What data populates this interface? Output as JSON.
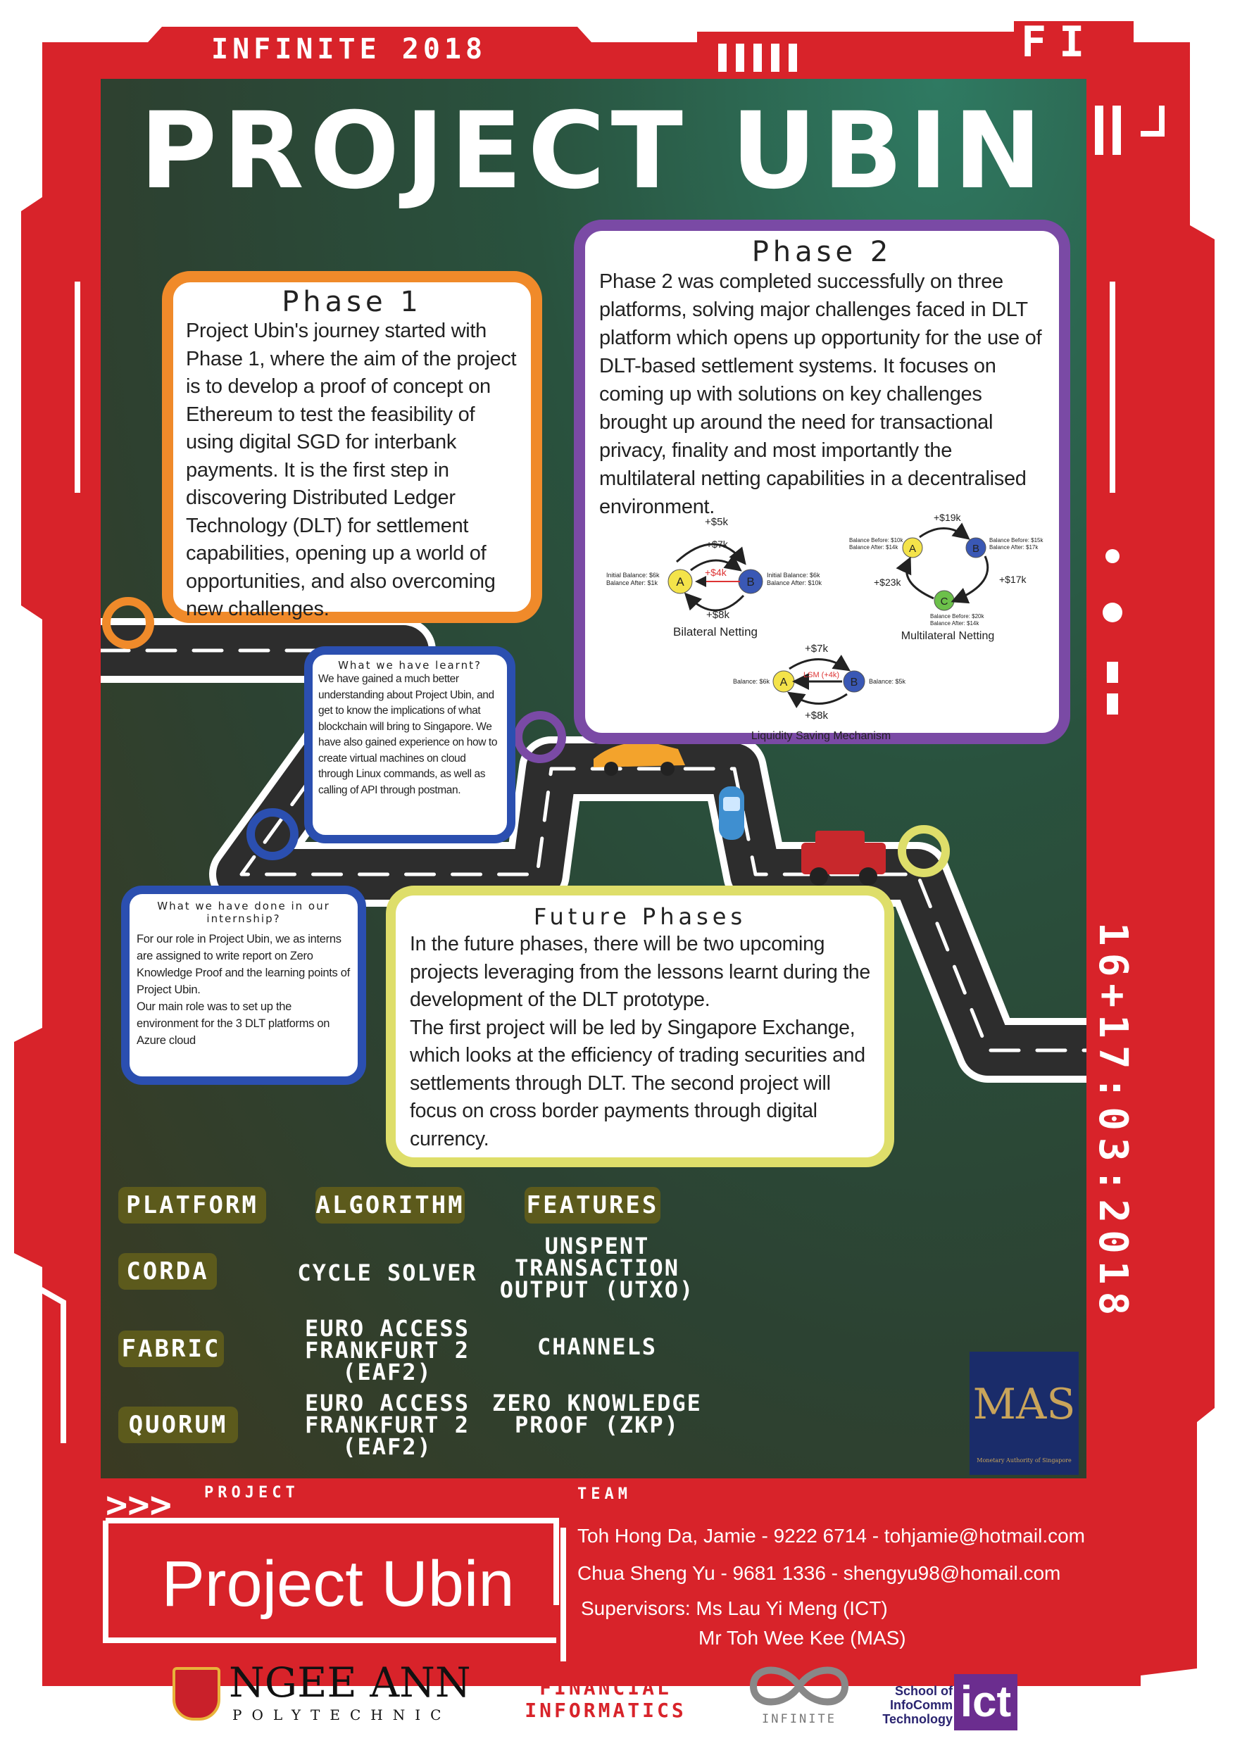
{
  "header": {
    "event": "INFINITE 2018",
    "corner_code": "FI",
    "side_code": "16+17:03:2018"
  },
  "title": "PROJECT UBIN",
  "phase1": {
    "title": "Phase 1",
    "text": "Project Ubin's journey started with Phase 1, where the aim of the project is to develop a proof of concept on Ethereum to test the feasibility of using digital SGD for interbank payments. It is the first step in discovering Distributed Ledger Technology (DLT) for settlement capabilities, opening up a world of opportunities, and also overcoming new challenges."
  },
  "phase2": {
    "title": "Phase 2",
    "text": "Phase 2 was completed successfully on three platforms, solving major challenges faced in DLT platform which opens up opportunity for the use of DLT-based settlement systems. It focuses on coming up with solutions on key challenges brought up around the need for transactional privacy, finality and most importantly the multilateral netting capabilities in a decentralised environment."
  },
  "diagrams": {
    "bilateral": {
      "label": "Bilateral Netting",
      "node_a": "A",
      "node_b": "B",
      "flow_top1": "+$5k",
      "flow_top2": "+$7k",
      "flow_net": "+$4k",
      "flow_bottom": "+$8k",
      "a_note1": "Initial Balance: $6k",
      "a_note2": "Balance After: $1k",
      "b_note1": "Initial Balance: $6k",
      "b_note2": "Balance After: $10k"
    },
    "multilateral": {
      "label": "Multilateral Netting",
      "node_a": "A",
      "node_b": "B",
      "node_c": "C",
      "flow_ab": "+$19k",
      "flow_bc": "+$17k",
      "flow_ca": "+$23k",
      "a_note1": "Balance Before: $10k",
      "a_note2": "Balance After: $14k",
      "b_note1": "Balance Before: $15k",
      "b_note2": "Balance After: $17k",
      "c_note1": "Balance Before: $20k",
      "c_note2": "Balance After: $14k"
    },
    "lsm": {
      "label": "Liquidity Saving Mechanism",
      "node_a": "A",
      "node_b": "B",
      "flow_top": "+$7k",
      "flow_mid": "LSM (+4k)",
      "flow_bottom": "+$8k",
      "a_note": "Balance: $6k",
      "b_note": "Balance: $5k"
    }
  },
  "learnt": {
    "title": "What we have learnt?",
    "text": "We have gained a much better understanding about Project Ubin, and get to know the implications of what blockchain will bring to Singapore. We have also gained experience on how to create virtual machines on cloud through Linux commands, as well as calling of API through postman."
  },
  "done": {
    "title": "What we have done in our internship?",
    "text1": "For our role in Project Ubin, we as interns are assigned to write report on Zero Knowledge Proof and the learning points of Project Ubin.",
    "text2": "Our main role was to set up the environment for the 3 DLT platforms on Azure cloud"
  },
  "future": {
    "title": "Future Phases",
    "text1": "In the future phases, there will be two upcoming projects leveraging from the lessons learnt during the development of the DLT prototype.",
    "text2": "The first project will be led by Singapore Exchange, which looks at the efficiency of trading securities and settlements through DLT. The second project will focus on cross border payments through digital currency."
  },
  "table": {
    "headers": [
      "PLATFORM",
      "ALGORITHM",
      "FEATURES"
    ],
    "rows": [
      [
        "CORDA",
        "CYCLE SOLVER",
        "UNSPENT TRANSACTION OUTPUT (UTXO)"
      ],
      [
        "FABRIC",
        "EURO ACCESS FRANKFURT 2 (EAF2)",
        "CHANNELS"
      ],
      [
        "QUORUM",
        "EURO ACCESS FRANKFURT 2 (EAF2)",
        "ZERO KNOWLEDGE PROOF (ZKP)"
      ]
    ]
  },
  "mas": {
    "logo": "MAS",
    "caption": "Monetary Authority of Singapore"
  },
  "footer": {
    "project_label": "PROJECT",
    "team_label": "TEAM",
    "project_name": "Project Ubin",
    "member1": "Toh Hong Da, Jamie - 9222 6714 - tohjamie@hotmail.com",
    "member2": "Chua Sheng Yu - 9681 1336 - shengyu98@homail.com",
    "supervisors1": "Supervisors: Ms Lau Yi Meng (ICT)",
    "supervisors2": "Mr Toh Wee Kee (MAS)"
  },
  "logos": {
    "ngee_ann": "NGEE ANN",
    "ngee_ann_sub": "POLYTECHNIC",
    "fi_line1": "FINANCIAL",
    "fi_line2": "INFORMATICS",
    "infinite": "INFINITE",
    "ict_line1": "School of",
    "ict_line2": "InfoComm",
    "ict_line3": "Technology",
    "ict_mark": "ict"
  },
  "colors": {
    "frame_red": "#d8232a",
    "phase1_orange": "#f08a2a",
    "phase2_purple": "#7a4aa5",
    "learnt_blue": "#2b4fb0",
    "future_yellow": "#dede6a"
  }
}
